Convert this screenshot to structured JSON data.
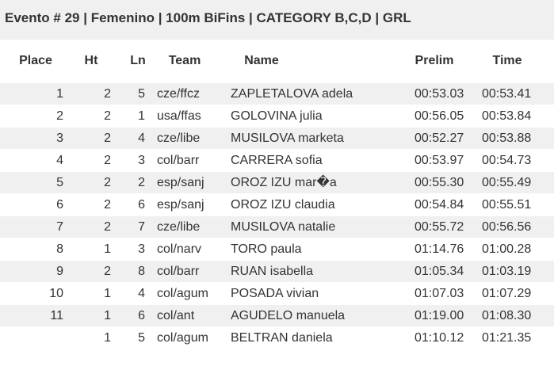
{
  "header": {
    "title": "Evento # 29 | Femenino | 100m BiFins | CATEGORY B,C,D | GRL"
  },
  "table": {
    "columns": [
      "Place",
      "Ht",
      "Ln",
      "Team",
      "Name",
      "Prelim",
      "Time"
    ],
    "rows": [
      [
        "1",
        "2",
        "5",
        "cze/ffcz",
        "ZAPLETALOVA adela",
        "00:53.03",
        "00:53.41"
      ],
      [
        "2",
        "2",
        "1",
        "usa/ffas",
        "GOLOVINA julia",
        "00:56.05",
        "00:53.84"
      ],
      [
        "3",
        "2",
        "4",
        "cze/libe",
        "MUSILOVA marketa",
        "00:52.27",
        "00:53.88"
      ],
      [
        "4",
        "2",
        "3",
        "col/barr",
        "CARRERA sofia",
        "00:53.97",
        "00:54.73"
      ],
      [
        "5",
        "2",
        "2",
        "esp/sanj",
        "OROZ IZU mar�a",
        "00:55.30",
        "00:55.49"
      ],
      [
        "6",
        "2",
        "6",
        "esp/sanj",
        "OROZ IZU claudia",
        "00:54.84",
        "00:55.51"
      ],
      [
        "7",
        "2",
        "7",
        "cze/libe",
        "MUSILOVA natalie",
        "00:55.72",
        "00:56.56"
      ],
      [
        "8",
        "1",
        "3",
        "col/narv",
        "TORO paula",
        "01:14.76",
        "01:00.28"
      ],
      [
        "9",
        "2",
        "8",
        "col/barr",
        "RUAN isabella",
        "01:05.34",
        "01:03.19"
      ],
      [
        "10",
        "1",
        "4",
        "col/agum",
        "POSADA vivian",
        "01:07.03",
        "01:07.29"
      ],
      [
        "11",
        "1",
        "6",
        "col/ant",
        "AGUDELO manuela",
        "01:19.00",
        "01:08.30"
      ],
      [
        null,
        "1",
        "5",
        "col/agum",
        "BELTRAN daniela",
        "01:10.12",
        "01:21.35"
      ]
    ]
  }
}
